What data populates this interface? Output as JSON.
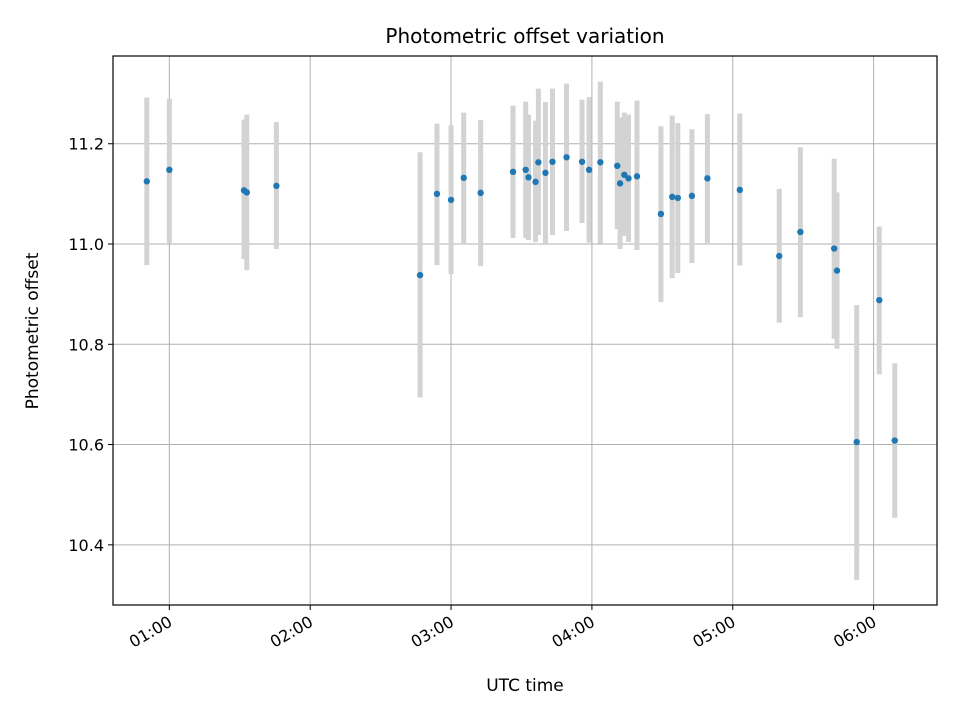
{
  "chart_data": {
    "type": "scatter",
    "title": "Photometric offset variation",
    "xlabel": "UTC time",
    "ylabel": "Photometric offset",
    "x_unit": "hours UTC",
    "xlim": [
      0.6,
      6.45
    ],
    "ylim": [
      10.28,
      11.375
    ],
    "grid": true,
    "x_ticks": [
      1,
      2,
      3,
      4,
      5,
      6
    ],
    "x_tick_labels": [
      "01:00",
      "02:00",
      "03:00",
      "04:00",
      "05:00",
      "06:00"
    ],
    "y_ticks": [
      10.4,
      10.6,
      10.8,
      11.0,
      11.2
    ],
    "y_tick_labels": [
      "10.4",
      "10.6",
      "10.8",
      "11.0",
      "11.2"
    ],
    "point_color": "#1f77b4",
    "errorbar_color": "#d3d3d3",
    "points": [
      {
        "x": 0.84,
        "y": 11.125,
        "lo": 10.958,
        "hi": 11.292
      },
      {
        "x": 1.0,
        "y": 11.148,
        "lo": 11.002,
        "hi": 11.29
      },
      {
        "x": 1.53,
        "y": 11.107,
        "lo": 10.97,
        "hi": 11.248
      },
      {
        "x": 1.55,
        "y": 11.103,
        "lo": 10.948,
        "hi": 11.258
      },
      {
        "x": 1.76,
        "y": 11.116,
        "lo": 10.99,
        "hi": 11.243
      },
      {
        "x": 2.78,
        "y": 10.938,
        "lo": 10.694,
        "hi": 11.183
      },
      {
        "x": 2.9,
        "y": 11.1,
        "lo": 10.958,
        "hi": 11.24
      },
      {
        "x": 3.0,
        "y": 11.088,
        "lo": 10.94,
        "hi": 11.237
      },
      {
        "x": 3.09,
        "y": 11.132,
        "lo": 11.002,
        "hi": 11.262
      },
      {
        "x": 3.21,
        "y": 11.102,
        "lo": 10.956,
        "hi": 11.247
      },
      {
        "x": 3.44,
        "y": 11.144,
        "lo": 11.012,
        "hi": 11.276
      },
      {
        "x": 3.53,
        "y": 11.148,
        "lo": 11.012,
        "hi": 11.284
      },
      {
        "x": 3.55,
        "y": 11.133,
        "lo": 11.008,
        "hi": 11.258
      },
      {
        "x": 3.6,
        "y": 11.124,
        "lo": 11.004,
        "hi": 11.246
      },
      {
        "x": 3.62,
        "y": 11.163,
        "lo": 11.018,
        "hi": 11.31
      },
      {
        "x": 3.67,
        "y": 11.142,
        "lo": 11.0,
        "hi": 11.283
      },
      {
        "x": 3.72,
        "y": 11.164,
        "lo": 11.018,
        "hi": 11.31
      },
      {
        "x": 3.82,
        "y": 11.173,
        "lo": 11.026,
        "hi": 11.32
      },
      {
        "x": 3.93,
        "y": 11.164,
        "lo": 11.042,
        "hi": 11.288
      },
      {
        "x": 3.98,
        "y": 11.148,
        "lo": 11.003,
        "hi": 11.293
      },
      {
        "x": 4.06,
        "y": 11.163,
        "lo": 11.001,
        "hi": 11.324
      },
      {
        "x": 4.18,
        "y": 11.156,
        "lo": 11.03,
        "hi": 11.284
      },
      {
        "x": 4.2,
        "y": 11.121,
        "lo": 10.99,
        "hi": 11.252
      },
      {
        "x": 4.23,
        "y": 11.138,
        "lo": 11.016,
        "hi": 11.262
      },
      {
        "x": 4.26,
        "y": 11.131,
        "lo": 11.004,
        "hi": 11.258
      },
      {
        "x": 4.32,
        "y": 11.135,
        "lo": 10.988,
        "hi": 11.286
      },
      {
        "x": 4.49,
        "y": 11.06,
        "lo": 10.884,
        "hi": 11.235
      },
      {
        "x": 4.57,
        "y": 11.094,
        "lo": 10.932,
        "hi": 11.256
      },
      {
        "x": 4.61,
        "y": 11.092,
        "lo": 10.942,
        "hi": 11.241
      },
      {
        "x": 4.71,
        "y": 11.096,
        "lo": 10.962,
        "hi": 11.229
      },
      {
        "x": 4.82,
        "y": 11.131,
        "lo": 11.002,
        "hi": 11.259
      },
      {
        "x": 5.05,
        "y": 11.108,
        "lo": 10.957,
        "hi": 11.26
      },
      {
        "x": 5.33,
        "y": 10.976,
        "lo": 10.843,
        "hi": 11.11
      },
      {
        "x": 5.48,
        "y": 11.024,
        "lo": 10.854,
        "hi": 11.193
      },
      {
        "x": 5.72,
        "y": 10.991,
        "lo": 10.811,
        "hi": 11.17
      },
      {
        "x": 5.74,
        "y": 10.947,
        "lo": 10.791,
        "hi": 11.103
      },
      {
        "x": 5.88,
        "y": 10.605,
        "lo": 10.33,
        "hi": 10.878
      },
      {
        "x": 6.04,
        "y": 10.888,
        "lo": 10.74,
        "hi": 11.035
      },
      {
        "x": 6.15,
        "y": 10.608,
        "lo": 10.454,
        "hi": 10.762
      }
    ]
  }
}
